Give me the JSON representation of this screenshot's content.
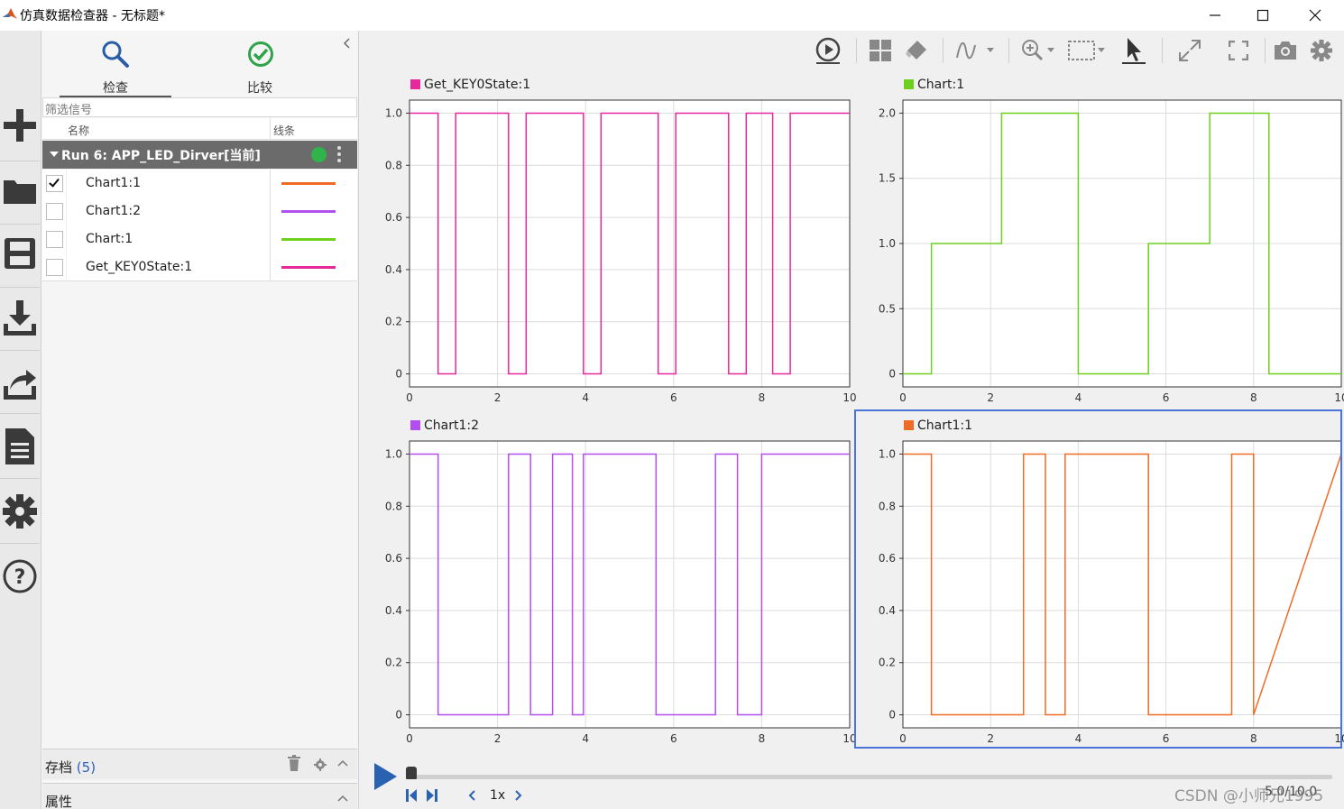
{
  "window": {
    "title": "仿真数据检查器 - 无标题*"
  },
  "tabs": [
    {
      "label": "检查",
      "active": true
    },
    {
      "label": "比较",
      "active": false
    }
  ],
  "signals_panel": {
    "filter_placeholder": "筛选信号",
    "col_name": "名称",
    "col_line": "线条",
    "run_label": "Run 6: APP_LED_Dirver[当前]",
    "signals": [
      {
        "name": "Chart1:1",
        "checked": true,
        "color": "#f06b26"
      },
      {
        "name": "Chart1:2",
        "checked": false,
        "color": "#b34ff0"
      },
      {
        "name": "Chart:1",
        "checked": false,
        "color": "#6fcf1d"
      },
      {
        "name": "Get_KEY0State:1",
        "checked": false,
        "color": "#e5289c"
      }
    ]
  },
  "sections": {
    "archive_label": "存档",
    "archive_count": "(5)",
    "properties_label": "属性"
  },
  "playback": {
    "speed": "1x",
    "time": "5.0/10.0"
  },
  "watermark": "CSDN @小师兄1995",
  "chart_data": [
    {
      "type": "line",
      "step": true,
      "series": [
        {
          "name": "Get_KEY0State:1",
          "color": "#e5289c",
          "x": [
            0,
            0.65,
            0.65,
            1.05,
            1.05,
            2.25,
            2.25,
            2.65,
            2.65,
            3.95,
            3.95,
            4.35,
            4.35,
            5.65,
            5.65,
            6.05,
            6.05,
            7.25,
            7.25,
            7.65,
            7.65,
            8.25,
            8.25,
            8.65,
            8.65,
            10
          ],
          "y": [
            1,
            1,
            0,
            0,
            1,
            1,
            0,
            0,
            1,
            1,
            0,
            0,
            1,
            1,
            0,
            0,
            1,
            1,
            0,
            0,
            1,
            1,
            0,
            0,
            1,
            1
          ]
        }
      ],
      "xticks": [
        "0",
        "2",
        "4",
        "6",
        "8",
        "10"
      ],
      "yticks": [
        "0",
        "0.2",
        "0.4",
        "0.6",
        "0.8",
        "1.0"
      ],
      "xlim": [
        0,
        10
      ],
      "ylim": [
        -0.05,
        1.05
      ],
      "grid": true
    },
    {
      "type": "line",
      "step": true,
      "series": [
        {
          "name": "Chart:1",
          "color": "#6fcf1d",
          "x": [
            0,
            0.65,
            0.65,
            2.25,
            2.25,
            4.0,
            4.0,
            5.6,
            5.6,
            7.0,
            7.0,
            8.35,
            8.35,
            10
          ],
          "y": [
            0,
            0,
            1,
            1,
            2,
            2,
            0,
            0,
            1,
            1,
            2,
            2,
            0,
            0
          ]
        }
      ],
      "xticks": [
        "0",
        "2",
        "4",
        "6",
        "8",
        "10"
      ],
      "yticks": [
        "0",
        "0.5",
        "1.0",
        "1.5",
        "2.0"
      ],
      "xlim": [
        0,
        10
      ],
      "ylim": [
        -0.1,
        2.1
      ],
      "grid": true
    },
    {
      "type": "line",
      "step": true,
      "series": [
        {
          "name": "Chart1:2",
          "color": "#b34ff0",
          "x": [
            0,
            0.65,
            0.65,
            2.25,
            2.25,
            2.75,
            2.75,
            3.25,
            3.25,
            3.7,
            3.7,
            3.95,
            3.95,
            5.6,
            5.6,
            6.95,
            6.95,
            7.45,
            7.45,
            8.0,
            8.0,
            10
          ],
          "y": [
            1,
            1,
            0,
            0,
            1,
            1,
            0,
            0,
            1,
            1,
            0,
            0,
            1,
            1,
            0,
            0,
            1,
            1,
            0,
            0,
            1,
            1
          ]
        }
      ],
      "xticks": [
        "0",
        "2",
        "4",
        "6",
        "8",
        "10"
      ],
      "yticks": [
        "0",
        "0.2",
        "0.4",
        "0.6",
        "0.8",
        "1.0"
      ],
      "xlim": [
        0,
        10
      ],
      "ylim": [
        -0.05,
        1.05
      ],
      "grid": true
    },
    {
      "type": "line",
      "step": true,
      "series": [
        {
          "name": "Chart1:1",
          "color": "#f06b26",
          "x": [
            0,
            0.65,
            0.65,
            2.75,
            2.75,
            3.25,
            3.25,
            3.7,
            3.7,
            5.6,
            5.6,
            7.5,
            7.5,
            8.0,
            8.0,
            10
          ],
          "y": [
            1,
            1,
            0,
            0,
            1,
            1,
            0,
            0,
            1,
            1,
            0,
            0,
            1,
            1,
            0,
            1
          ]
        }
      ],
      "xticks": [
        "0",
        "2",
        "4",
        "6",
        "8",
        "10"
      ],
      "yticks": [
        "0",
        "0.2",
        "0.4",
        "0.6",
        "0.8",
        "1.0"
      ],
      "xlim": [
        0,
        10
      ],
      "ylim": [
        -0.05,
        1.05
      ],
      "grid": true
    }
  ]
}
